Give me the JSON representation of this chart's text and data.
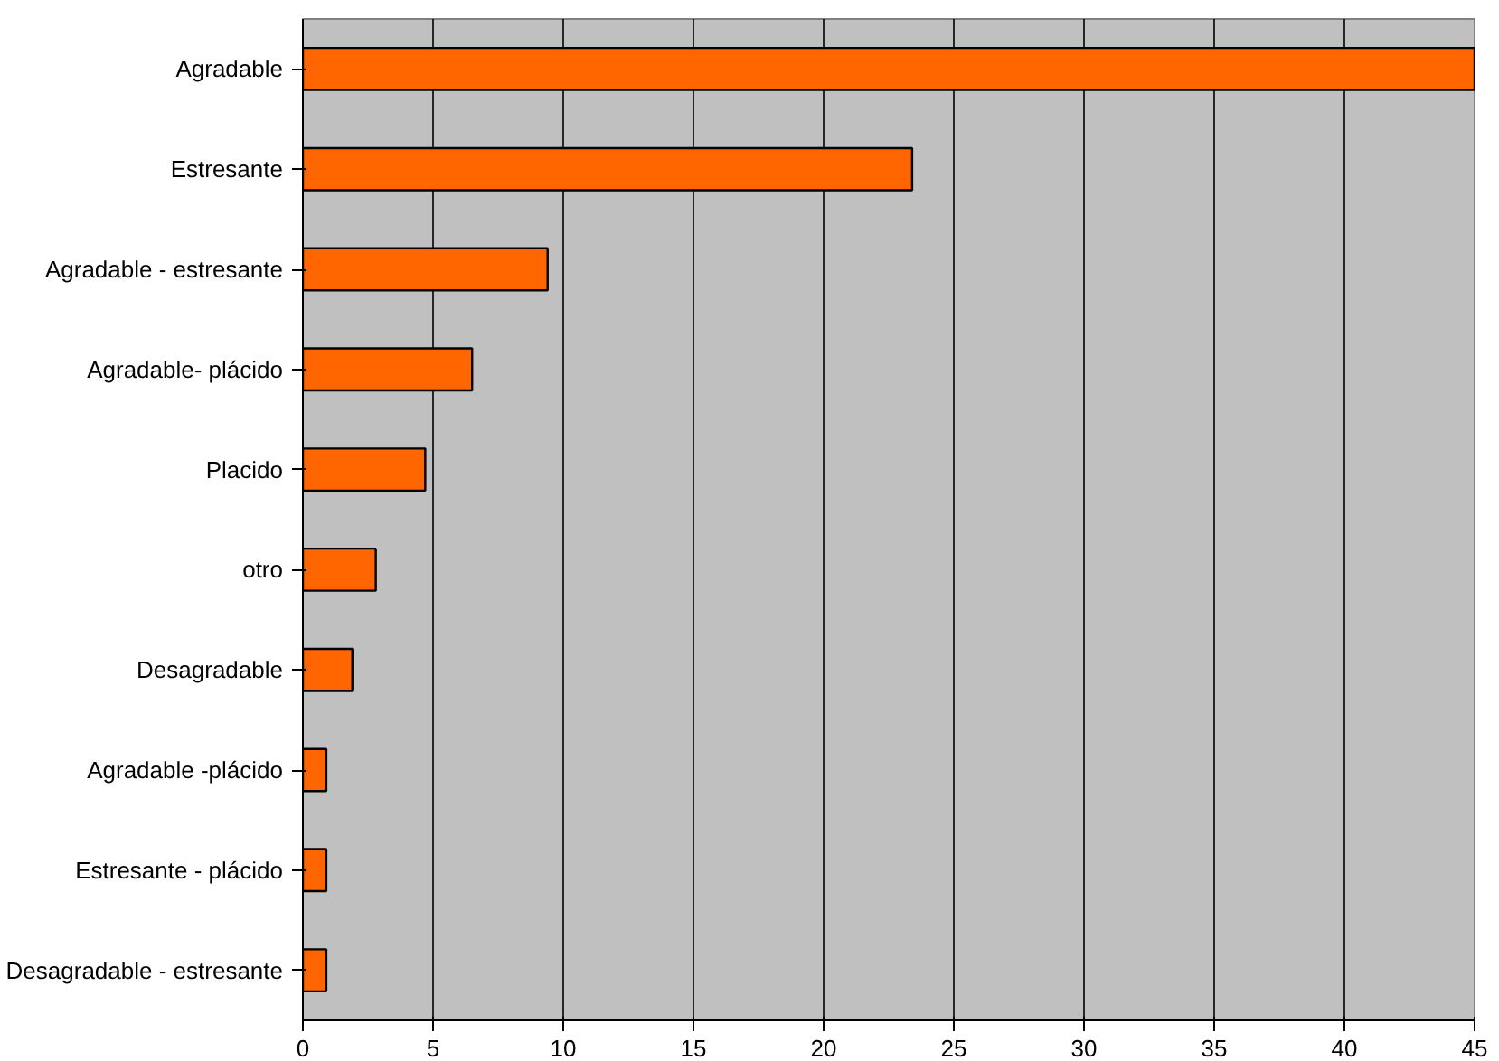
{
  "chart_data": {
    "type": "bar",
    "orientation": "horizontal",
    "categories": [
      "Agradable",
      "Estresante",
      "Agradable - estresante",
      "Agradable- plácido",
      "Placido",
      "otro",
      "Desagradable",
      "Agradable -plácido",
      "Estresante - plácido",
      "Desagradable - estresante"
    ],
    "values": [
      45,
      23.4,
      9.4,
      6.5,
      4.7,
      2.8,
      1.9,
      0.9,
      0.9,
      0.9
    ],
    "color": "#ff6600",
    "xlim": [
      0,
      45
    ],
    "xticks": [
      0,
      5,
      10,
      15,
      20,
      25,
      30,
      35,
      40,
      45
    ],
    "grid": "x"
  }
}
